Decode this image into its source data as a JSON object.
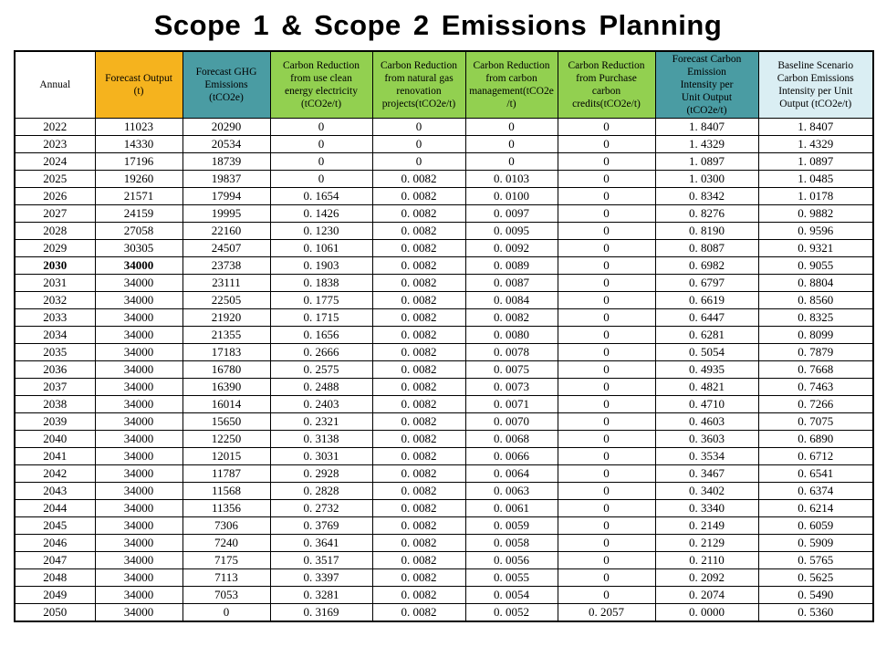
{
  "title": "Scope 1 & Scope 2 Emissions Planning",
  "colors": {
    "header_orange": "#F5B31E",
    "header_teal": "#4A9CA3",
    "header_green": "#92D050",
    "header_lightblue": "#DAEEF3",
    "header_white": "#FFFFFF",
    "border": "#000000",
    "text": "#000000"
  },
  "chart_data": {
    "type": "table",
    "title": "Scope 1 & Scope 2 Emissions Planning",
    "bold_year": "2030",
    "columns": [
      {
        "label": "Annual",
        "bg": "white"
      },
      {
        "label": "Forecast Output\n(t)",
        "bg": "orange"
      },
      {
        "label": "Forecast GHG\nEmissions\n(tCO2e)",
        "bg": "teal"
      },
      {
        "label": "Carbon Reduction\nfrom use clean\nenergy electricity\n(tCO2e/t)",
        "bg": "green"
      },
      {
        "label": "Carbon Reduction\nfrom natural gas\nrenovation\nprojects(tCO2e/t)",
        "bg": "green"
      },
      {
        "label": "Carbon Reduction\nfrom carbon\nmanagement(tCO2e\n/t)",
        "bg": "green"
      },
      {
        "label": "Carbon Reduction\nfrom Purchase\ncarbon\ncredits(tCO2e/t)",
        "bg": "green"
      },
      {
        "label": "Forecast Carbon\nEmission\nIntensity per\nUnit Output\n(tCO2e/t)",
        "bg": "teal"
      },
      {
        "label": "Baseline Scenario\nCarbon Emissions\nIntensity per Unit\nOutput  (tCO2e/t)",
        "bg": "lightblue"
      }
    ],
    "rows": [
      [
        "2022",
        "11023",
        "20290",
        "0",
        "0",
        "0",
        "0",
        "1.8407",
        "1.8407"
      ],
      [
        "2023",
        "14330",
        "20534",
        "0",
        "0",
        "0",
        "0",
        "1.4329",
        "1.4329"
      ],
      [
        "2024",
        "17196",
        "18739",
        "0",
        "0",
        "0",
        "0",
        "1.0897",
        "1.0897"
      ],
      [
        "2025",
        "19260",
        "19837",
        "0",
        "0.0082",
        "0.0103",
        "0",
        "1.0300",
        "1.0485"
      ],
      [
        "2026",
        "21571",
        "17994",
        "0.1654",
        "0.0082",
        "0.0100",
        "0",
        "0.8342",
        "1.0178"
      ],
      [
        "2027",
        "24159",
        "19995",
        "0.1426",
        "0.0082",
        "0.0097",
        "0",
        "0.8276",
        "0.9882"
      ],
      [
        "2028",
        "27058",
        "22160",
        "0.1230",
        "0.0082",
        "0.0095",
        "0",
        "0.8190",
        "0.9596"
      ],
      [
        "2029",
        "30305",
        "24507",
        "0.1061",
        "0.0082",
        "0.0092",
        "0",
        "0.8087",
        "0.9321"
      ],
      [
        "2030",
        "34000",
        "23738",
        "0.1903",
        "0.0082",
        "0.0089",
        "0",
        "0.6982",
        "0.9055"
      ],
      [
        "2031",
        "34000",
        "23111",
        "0.1838",
        "0.0082",
        "0.0087",
        "0",
        "0.6797",
        "0.8804"
      ],
      [
        "2032",
        "34000",
        "22505",
        "0.1775",
        "0.0082",
        "0.0084",
        "0",
        "0.6619",
        "0.8560"
      ],
      [
        "2033",
        "34000",
        "21920",
        "0.1715",
        "0.0082",
        "0.0082",
        "0",
        "0.6447",
        "0.8325"
      ],
      [
        "2034",
        "34000",
        "21355",
        "0.1656",
        "0.0082",
        "0.0080",
        "0",
        "0.6281",
        "0.8099"
      ],
      [
        "2035",
        "34000",
        "17183",
        "0.2666",
        "0.0082",
        "0.0078",
        "0",
        "0.5054",
        "0.7879"
      ],
      [
        "2036",
        "34000",
        "16780",
        "0.2575",
        "0.0082",
        "0.0075",
        "0",
        "0.4935",
        "0.7668"
      ],
      [
        "2037",
        "34000",
        "16390",
        "0.2488",
        "0.0082",
        "0.0073",
        "0",
        "0.4821",
        "0.7463"
      ],
      [
        "2038",
        "34000",
        "16014",
        "0.2403",
        "0.0082",
        "0.0071",
        "0",
        "0.4710",
        "0.7266"
      ],
      [
        "2039",
        "34000",
        "15650",
        "0.2321",
        "0.0082",
        "0.0070",
        "0",
        "0.4603",
        "0.7075"
      ],
      [
        "2040",
        "34000",
        "12250",
        "0.3138",
        "0.0082",
        "0.0068",
        "0",
        "0.3603",
        "0.6890"
      ],
      [
        "2041",
        "34000",
        "12015",
        "0.3031",
        "0.0082",
        "0.0066",
        "0",
        "0.3534",
        "0.6712"
      ],
      [
        "2042",
        "34000",
        "11787",
        "0.2928",
        "0.0082",
        "0.0064",
        "0",
        "0.3467",
        "0.6541"
      ],
      [
        "2043",
        "34000",
        "11568",
        "0.2828",
        "0.0082",
        "0.0063",
        "0",
        "0.3402",
        "0.6374"
      ],
      [
        "2044",
        "34000",
        "11356",
        "0.2732",
        "0.0082",
        "0.0061",
        "0",
        "0.3340",
        "0.6214"
      ],
      [
        "2045",
        "34000",
        "7306",
        "0.3769",
        "0.0082",
        "0.0059",
        "0",
        "0.2149",
        "0.6059"
      ],
      [
        "2046",
        "34000",
        "7240",
        "0.3641",
        "0.0082",
        "0.0058",
        "0",
        "0.2129",
        "0.5909"
      ],
      [
        "2047",
        "34000",
        "7175",
        "0.3517",
        "0.0082",
        "0.0056",
        "0",
        "0.2110",
        "0.5765"
      ],
      [
        "2048",
        "34000",
        "7113",
        "0.3397",
        "0.0082",
        "0.0055",
        "0",
        "0.2092",
        "0.5625"
      ],
      [
        "2049",
        "34000",
        "7053",
        "0.3281",
        "0.0082",
        "0.0054",
        "0",
        "0.2074",
        "0.5490"
      ],
      [
        "2050",
        "34000",
        "0",
        "0.3169",
        "0.0082",
        "0.0052",
        "0.2057",
        "0.0000",
        "0.5360"
      ]
    ]
  }
}
